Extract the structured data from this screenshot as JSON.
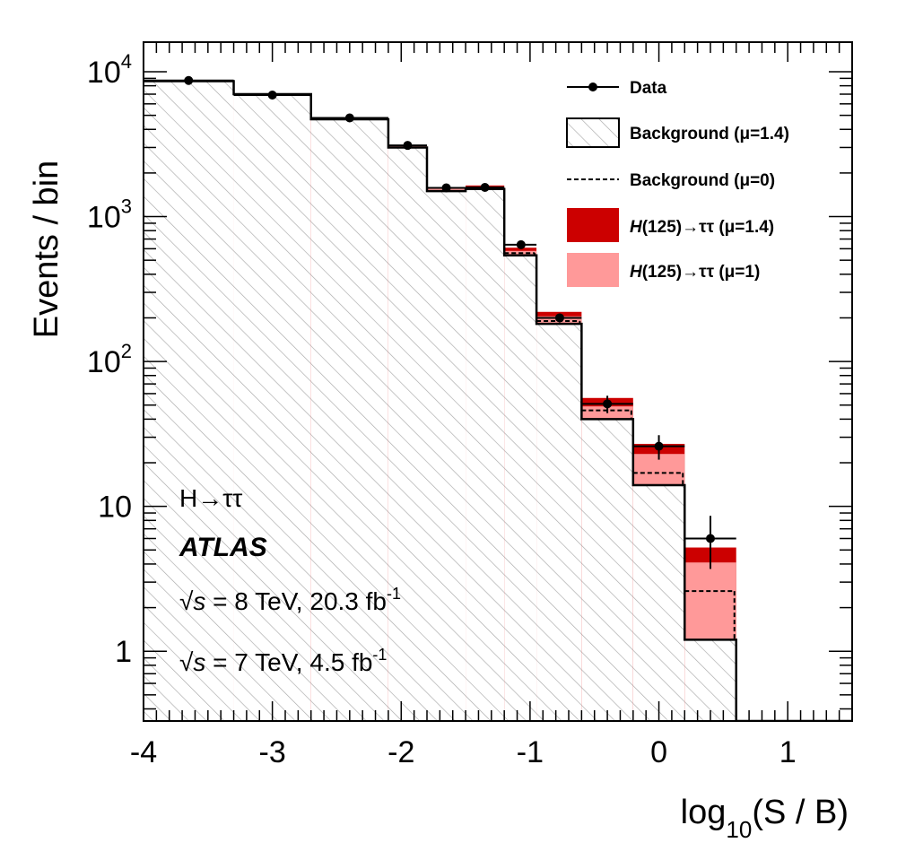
{
  "chart_data": {
    "type": "bar",
    "x_edges": [
      -4.0,
      -3.3,
      -2.7,
      -2.1,
      -1.8,
      -1.5,
      -1.2,
      -0.95,
      -0.6,
      -0.2,
      0.2,
      0.6,
      1.5
    ],
    "xlim": [
      -4.0,
      1.5
    ],
    "ylim": [
      0.33,
      16000
    ],
    "y_scale": "log",
    "x_ticks": [
      -4,
      -3,
      -2,
      -1,
      0,
      1
    ],
    "x_tick_labels": [
      "-4",
      "-3",
      "-2",
      "-1",
      "0",
      "1"
    ],
    "y_ticks": [
      {
        "value": 10000,
        "base": "10",
        "exp": "4"
      },
      {
        "value": 1000,
        "base": "10",
        "exp": "3"
      },
      {
        "value": 100,
        "base": "10",
        "exp": "2"
      },
      {
        "value": 10,
        "base": "10",
        "exp": ""
      },
      {
        "value": 1,
        "base": "1",
        "exp": ""
      }
    ],
    "xlabel": {
      "main": "log",
      "sub": "10",
      "rest": "(S / B)"
    },
    "ylabel": "Events / bin",
    "series": [
      {
        "name": "Background (μ=1.4)",
        "style": "hatched",
        "values": [
          8600,
          7000,
          4700,
          3000,
          1500,
          1550,
          540,
          182,
          40,
          14,
          1.2,
          0
        ]
      },
      {
        "name": "Background (μ=0)",
        "style": "dashed",
        "values": [
          8600,
          7000,
          4700,
          3000,
          1500,
          1550,
          560,
          190,
          46,
          17,
          2.6,
          0
        ]
      },
      {
        "name": "H(125)→ττ (μ=1.4)",
        "color": "#cc0000",
        "values": [
          8650,
          7050,
          4790,
          3120,
          1590,
          1640,
          610,
          220,
          56,
          27,
          5.2,
          0
        ]
      },
      {
        "name": "H(125)→ττ (μ=1)",
        "color": "#ff9999",
        "values": [
          8630,
          7030,
          4760,
          3080,
          1560,
          1610,
          580,
          205,
          49,
          23,
          4.1,
          0
        ]
      },
      {
        "name": "Data",
        "style": "points",
        "x": [
          -3.65,
          -3.0,
          -2.4,
          -1.95,
          -1.65,
          -1.35,
          -1.07,
          -0.77,
          -0.4,
          0.0,
          0.4
        ],
        "values": [
          8700,
          6900,
          4800,
          3100,
          1580,
          1590,
          640,
          200,
          51,
          26,
          6
        ],
        "err_low": [
          90,
          80,
          70,
          55,
          40,
          40,
          25,
          14,
          7,
          5,
          2.3
        ],
        "err_high": [
          90,
          80,
          70,
          55,
          40,
          40,
          25,
          14,
          7,
          5,
          2.6
        ]
      }
    ],
    "legend_position": "top-right",
    "legend": [
      {
        "key": "data",
        "text": "Data",
        "mu": ""
      },
      {
        "key": "bkg14",
        "text": "Background",
        "mu": "(μ=1.4)"
      },
      {
        "key": "bkg0",
        "text": "Background",
        "mu": "(μ=0)"
      },
      {
        "key": "sig14",
        "prefix": "H",
        "text": "(125)→ττ",
        "mu": "(μ=1.4)"
      },
      {
        "key": "sig1",
        "prefix": "H",
        "text": "(125)→ττ",
        "mu": "(μ=1)"
      }
    ],
    "annotations": {
      "process": "H→ττ",
      "experiment": "ATLAS",
      "lumi8_prefix": "√",
      "lumi8_s": "s",
      "lumi8_text": " = 8 TeV, 20.3 fb",
      "lumi8_exp": "-1",
      "lumi7_prefix": "√",
      "lumi7_s": "s",
      "lumi7_text": " = 7 TeV, 4.5 fb",
      "lumi7_exp": "-1"
    },
    "colors": {
      "signal_14": "#cc0000",
      "signal_1": "#ff9999",
      "hatch": "#999999",
      "line": "#000000"
    }
  }
}
